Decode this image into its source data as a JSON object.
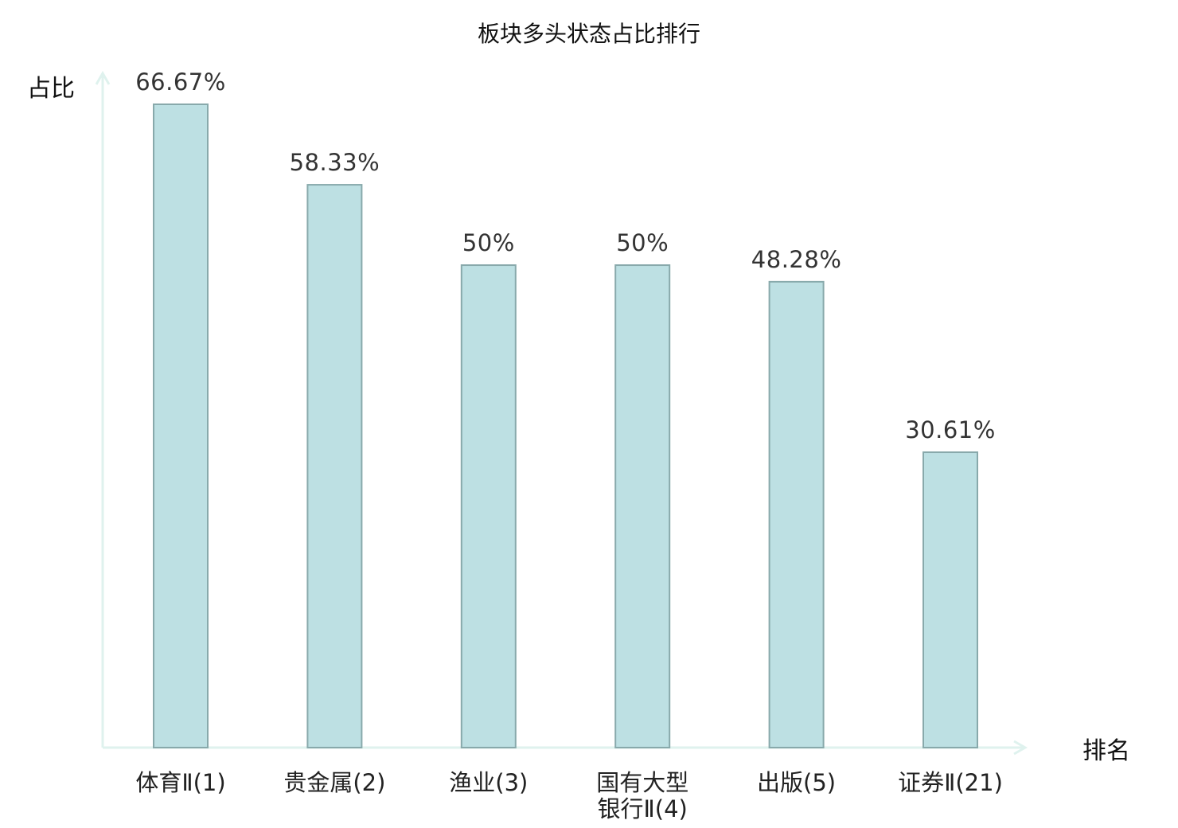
{
  "chart_data": {
    "type": "bar",
    "title": "板块多头状态占比排行",
    "ylabel": "占比",
    "xlabel": "排名",
    "ylim": [
      0,
      70
    ],
    "grid": false,
    "legend": "none",
    "categories": [
      {
        "label_lines": [
          "体育Ⅱ(1)"
        ],
        "color": "#111111"
      },
      {
        "label_lines": [
          "贵金属(2)"
        ],
        "color": "#111111"
      },
      {
        "label_lines": [
          "渔业(3)"
        ],
        "color": "#111111"
      },
      {
        "label_lines": [
          "国有大型",
          "银行Ⅱ(4)"
        ],
        "color": "#111111"
      },
      {
        "label_lines": [
          "出版(5)"
        ],
        "color": "#111111"
      },
      {
        "label_lines": [
          "证券Ⅱ(21)"
        ],
        "color": "#e0151b"
      }
    ],
    "values": [
      66.67,
      58.33,
      50,
      50,
      48.28,
      30.61
    ],
    "value_labels": [
      "66.67%",
      "58.33%",
      "50%",
      "50%",
      "48.28%",
      "30.61%"
    ],
    "colors": {
      "bar_fill": "#bde0e3",
      "bar_stroke": "#88a9ab",
      "axis": "#dff2ee",
      "highlight": "#e0151b"
    }
  }
}
